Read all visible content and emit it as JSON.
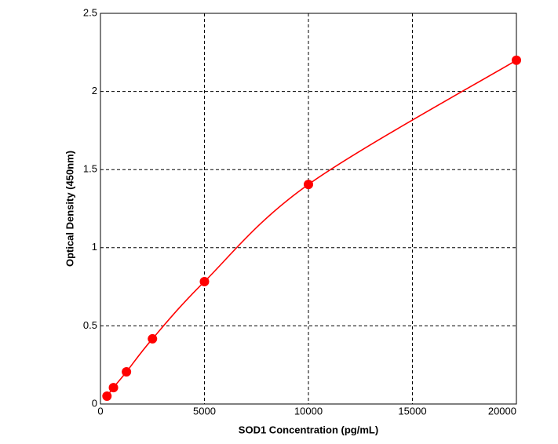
{
  "chart_data": {
    "type": "scatter",
    "x_label": "SOD1 Concentration (pg/mL)",
    "y_label": "Optical Density (450nm)",
    "series": [
      {
        "color": "#ff0000",
        "x": [
          312.5,
          625,
          1250,
          2500,
          5000,
          10000,
          20000
        ],
        "values": [
          0.05,
          0.105,
          0.206,
          0.417,
          0.783,
          1.405,
          2.2
        ]
      }
    ],
    "xlim": [
      0,
      20000
    ],
    "xticks": [
      0,
      5000,
      10000,
      15000,
      20000
    ],
    "ylim": [
      0,
      2.5
    ],
    "yticks": [
      0,
      0.5,
      1,
      1.5,
      2,
      2.5
    ],
    "grid": true
  }
}
